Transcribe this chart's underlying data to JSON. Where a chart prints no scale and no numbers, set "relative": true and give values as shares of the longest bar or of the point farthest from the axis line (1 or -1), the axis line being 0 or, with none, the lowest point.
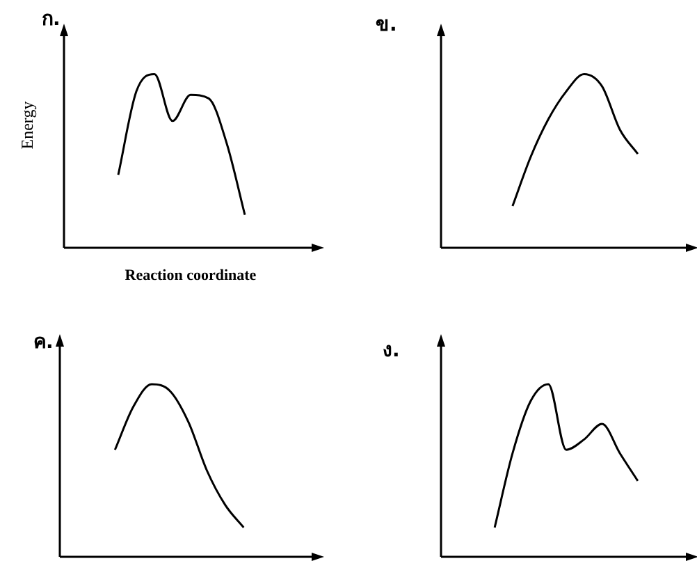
{
  "chart_data": [
    {
      "type": "line",
      "title": "ก.",
      "xlabel": "Reaction coordinate",
      "ylabel": "Energy",
      "relative": true,
      "legend": false,
      "marker": "none",
      "categories": [
        null,
        null,
        null,
        null,
        null,
        null,
        null,
        null,
        null,
        null,
        null,
        null,
        null,
        null,
        null
      ],
      "series": [
        {
          "color": "#000000",
          "values": [
            null,
            null,
            null,
            0.42,
            0.9,
            1,
            0.73,
            0.88,
            0.86,
            0.6,
            0.19,
            null,
            null,
            null,
            null
          ]
        }
      ]
    },
    {
      "type": "line",
      "title": "ข.",
      "relative": true,
      "legend": false,
      "marker": "none",
      "categories": [
        null,
        null,
        null,
        null,
        null,
        null,
        null,
        null,
        null,
        null,
        null,
        null,
        null,
        null,
        null
      ],
      "series": [
        {
          "color": "#000000",
          "values": [
            null,
            null,
            null,
            null,
            0.24,
            0.52,
            0.74,
            0.9,
            1,
            0.93,
            0.68,
            0.54,
            null,
            null,
            null
          ]
        }
      ]
    },
    {
      "type": "line",
      "title": "ค.",
      "relative": true,
      "legend": false,
      "marker": "none",
      "categories": [
        null,
        null,
        null,
        null,
        null,
        null,
        null,
        null,
        null,
        null,
        null,
        null,
        null,
        null,
        null
      ],
      "series": [
        {
          "color": "#000000",
          "values": [
            null,
            null,
            null,
            0.62,
            0.87,
            1,
            0.96,
            0.78,
            0.5,
            0.3,
            0.17,
            null,
            null,
            null,
            null
          ]
        }
      ]
    },
    {
      "type": "line",
      "title": "ง.",
      "relative": true,
      "legend": false,
      "marker": "none",
      "categories": [
        null,
        null,
        null,
        null,
        null,
        null,
        null,
        null,
        null,
        null,
        null,
        null,
        null,
        null,
        null
      ],
      "series": [
        {
          "color": "#000000",
          "values": [
            null,
            null,
            null,
            0.17,
            0.6,
            0.9,
            1,
            0.62,
            0.68,
            0.77,
            0.6,
            0.44,
            null,
            null,
            null
          ]
        }
      ]
    }
  ]
}
